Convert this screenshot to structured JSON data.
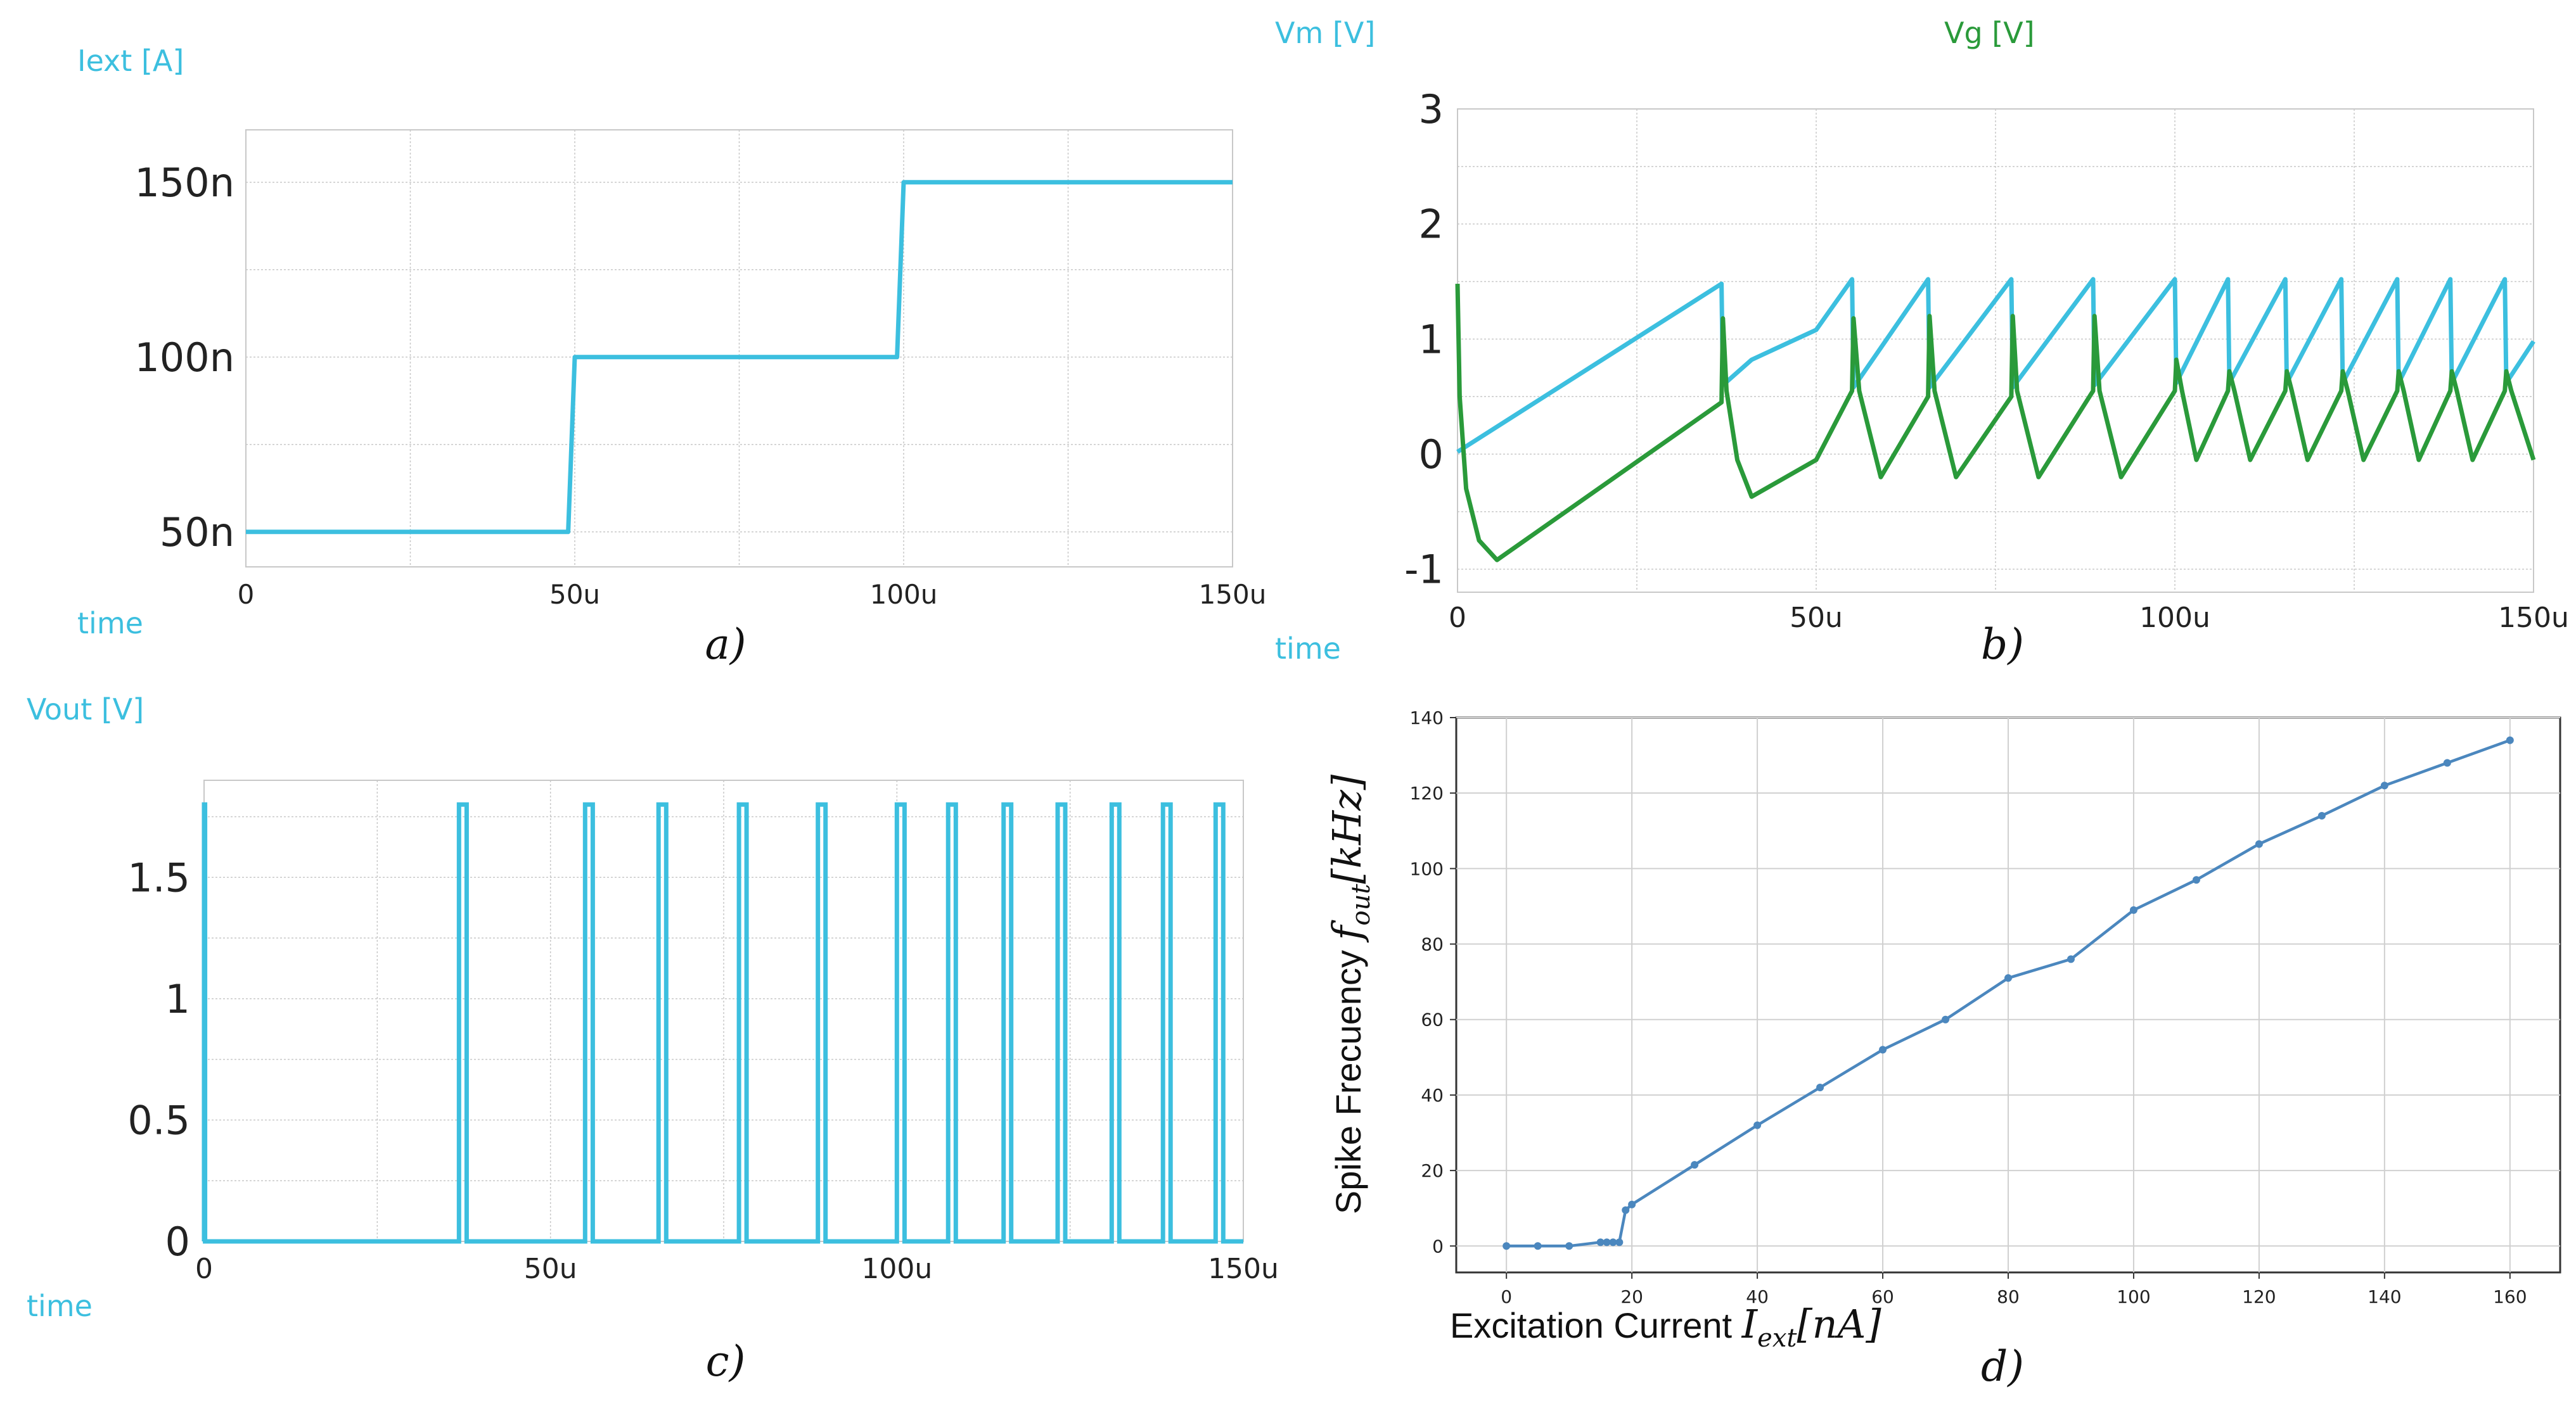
{
  "colors": {
    "cyan": "#3cbfdf",
    "green": "#2a9a3a",
    "blue_d": "#4b87be",
    "grid": "#c8c8c8",
    "frame": "#c8c8c8"
  },
  "chart_data": [
    {
      "id": "a",
      "type": "line",
      "caption": "a)",
      "ylabel": "Iext [A]",
      "xlabel": "time",
      "x_ticks": [
        "0",
        "50u",
        "100u",
        "150u"
      ],
      "y_ticks": [
        "50n",
        "100n",
        "150n"
      ],
      "xlim": [
        0,
        150
      ],
      "ylim": [
        40,
        165
      ],
      "series": [
        {
          "name": "Iext",
          "color": "#3cbfdf",
          "x": [
            0,
            49,
            50,
            99,
            100,
            150
          ],
          "y": [
            50,
            50,
            100,
            100,
            150,
            150
          ]
        }
      ]
    },
    {
      "id": "b",
      "type": "line",
      "caption": "b)",
      "ylabel": "Vm [V]",
      "ylabel2": "Vg [V]",
      "xlabel": "time",
      "x_ticks": [
        "0",
        "50u",
        "100u",
        "150u"
      ],
      "y_ticks": [
        "-1",
        "0",
        "1",
        "2",
        "3"
      ],
      "xlim": [
        0,
        150
      ],
      "ylim": [
        -1.2,
        3
      ],
      "series": [
        {
          "name": "Vm",
          "color": "#3cbfdf",
          "x": [
            0,
            36.8,
            37,
            41,
            50,
            55,
            55.2,
            65.6,
            65.8,
            77.2,
            77.4,
            88.6,
            88.8,
            100,
            100.2,
            107.4,
            107.6,
            115.4,
            115.6,
            123.2,
            123.4,
            131,
            131.2,
            138.4,
            138.6,
            146,
            146.2,
            150
          ],
          "y": [
            0.02,
            1.48,
            0.6,
            0.82,
            1.08,
            1.52,
            0.58,
            1.52,
            0.58,
            1.52,
            0.58,
            1.52,
            0.6,
            1.52,
            0.62,
            1.52,
            0.62,
            1.52,
            0.62,
            1.52,
            0.62,
            1.52,
            0.62,
            1.52,
            0.62,
            1.52,
            0.62,
            0.98
          ]
        },
        {
          "name": "Vg",
          "color": "#2a9a3a",
          "x": [
            0,
            0.3,
            1.2,
            3,
            5.5,
            36.8,
            37,
            37.5,
            39,
            41,
            50,
            55,
            55.2,
            56,
            59,
            65.6,
            65.8,
            66.5,
            69.5,
            77.2,
            77.4,
            78,
            81,
            88.6,
            88.8,
            89.5,
            92.5,
            100,
            100.2,
            101,
            103,
            107.4,
            107.6,
            108.3,
            110.5,
            115.4,
            115.6,
            116.3,
            118.5,
            123.2,
            123.4,
            124.1,
            126.3,
            131,
            131.2,
            131.9,
            134,
            138.4,
            138.6,
            139.3,
            141.5,
            146,
            146.2,
            146.9,
            150
          ],
          "y": [
            1.48,
            0.5,
            -0.3,
            -0.75,
            -0.92,
            0.45,
            1.18,
            0.55,
            -0.05,
            -0.37,
            -0.05,
            0.55,
            1.18,
            0.55,
            -0.2,
            0.5,
            1.2,
            0.55,
            -0.2,
            0.5,
            1.2,
            0.55,
            -0.2,
            0.55,
            1.2,
            0.55,
            -0.2,
            0.55,
            0.82,
            0.55,
            -0.05,
            0.55,
            0.72,
            0.55,
            -0.05,
            0.55,
            0.72,
            0.55,
            -0.05,
            0.55,
            0.72,
            0.55,
            -0.05,
            0.55,
            0.72,
            0.55,
            -0.05,
            0.55,
            0.72,
            0.55,
            -0.05,
            0.55,
            0.72,
            0.55,
            -0.05
          ]
        }
      ]
    },
    {
      "id": "c",
      "type": "line",
      "caption": "c)",
      "ylabel": "Vout [V]",
      "xlabel": "time",
      "x_ticks": [
        "0",
        "50u",
        "100u",
        "150u"
      ],
      "y_ticks": [
        "0",
        "0.5",
        "1",
        "1.5"
      ],
      "xlim": [
        0,
        150
      ],
      "ylim": [
        0,
        1.9
      ],
      "pulse_high": 1.8,
      "pulses": [
        [
          36.8,
          37.9
        ],
        [
          55,
          56.1
        ],
        [
          65.6,
          66.7
        ],
        [
          77.2,
          78.3
        ],
        [
          88.6,
          89.7
        ],
        [
          100,
          101.1
        ],
        [
          107.4,
          108.5
        ],
        [
          115.4,
          116.5
        ],
        [
          123.2,
          124.3
        ],
        [
          131,
          132.1
        ],
        [
          138.4,
          139.5
        ],
        [
          146,
          147.1
        ]
      ],
      "series": [
        {
          "name": "Vout",
          "color": "#3cbfdf"
        }
      ]
    },
    {
      "id": "d",
      "type": "line",
      "caption": "d)",
      "ylabel": "Spike Frecuency f_out [kHz]",
      "ylabel_text": "Spike Frecuency ",
      "ylabel_math_f": "f",
      "ylabel_math_sub": "out",
      "ylabel_math_unit": "[kHz]",
      "xlabel": "Excitation Current I_ext[nA]",
      "xlabel_text": "Excitation Current ",
      "xlabel_math_i": "I",
      "xlabel_math_sub": "ext",
      "xlabel_math_unit": "[nA]",
      "x_ticks": [
        "0",
        "20",
        "40",
        "60",
        "80",
        "100",
        "120",
        "140",
        "160"
      ],
      "y_ticks": [
        "0",
        "20",
        "40",
        "60",
        "80",
        "100",
        "120",
        "140"
      ],
      "xlim": [
        -8,
        168
      ],
      "ylim": [
        -7,
        140
      ],
      "grid": true,
      "series": [
        {
          "name": "f_out",
          "color": "#4b87be",
          "x": [
            0,
            5,
            10,
            15,
            16,
            17,
            18,
            19,
            20,
            30,
            40,
            50,
            60,
            70,
            80,
            90,
            100,
            110,
            120,
            130,
            140,
            150,
            160
          ],
          "y": [
            0,
            0,
            0,
            1,
            1,
            1,
            1,
            9.5,
            11,
            21.5,
            32,
            42,
            52,
            60,
            71,
            76,
            89,
            97,
            106.5,
            114,
            122,
            128,
            134
          ]
        }
      ]
    }
  ]
}
